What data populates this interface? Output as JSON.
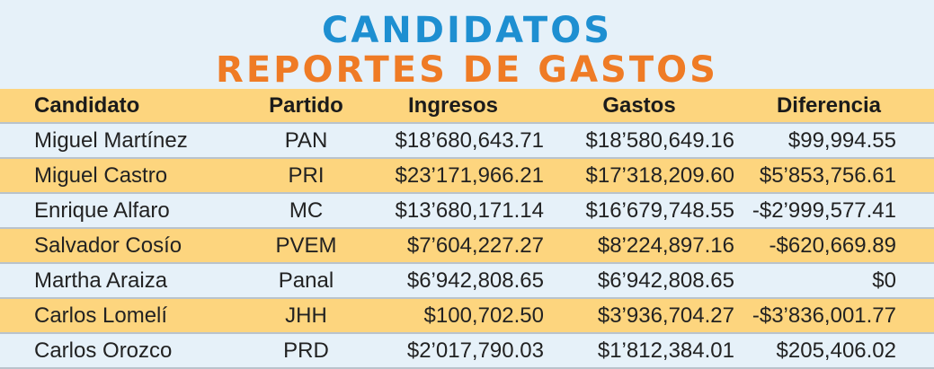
{
  "title_line1": "CANDIDATOS",
  "title_line2": "REPORTES DE GASTOS",
  "columns": [
    "Candidato",
    "Partido",
    "Ingresos",
    "Gastos",
    "Diferencia"
  ],
  "rows": [
    [
      "Miguel Martínez",
      "PAN",
      "$18’680,643.71",
      "$18’580,649.16",
      "$99,994.55"
    ],
    [
      "Miguel Castro",
      "PRI",
      "$23’171,966.21",
      "$17’318,209.60",
      "$5’853,756.61"
    ],
    [
      "Enrique Alfaro",
      "MC",
      "$13’680,171.14",
      "$16’679,748.55",
      "-$2’999,577.41"
    ],
    [
      "Salvador Cosío",
      "PVEM",
      "$7’604,227.27",
      "$8’224,897.16",
      "-$620,669.89"
    ],
    [
      "Martha Araiza",
      "Panal",
      "$6’942,808.65",
      "$6’942,808.65",
      "$0"
    ],
    [
      "Carlos Lomelí",
      "JHH",
      "$100,702.50",
      "$3’936,704.27",
      "-$3’836,001.77"
    ],
    [
      "Carlos Orozco",
      "PRD",
      "$2’017,790.03",
      "$1’812,384.01",
      "$205,406.02"
    ]
  ],
  "colors": {
    "title_blue": "#1e8fd1",
    "title_orange": "#ef7b25",
    "band_yellow": "#fdd57e",
    "band_light": "#e6f1f9"
  }
}
